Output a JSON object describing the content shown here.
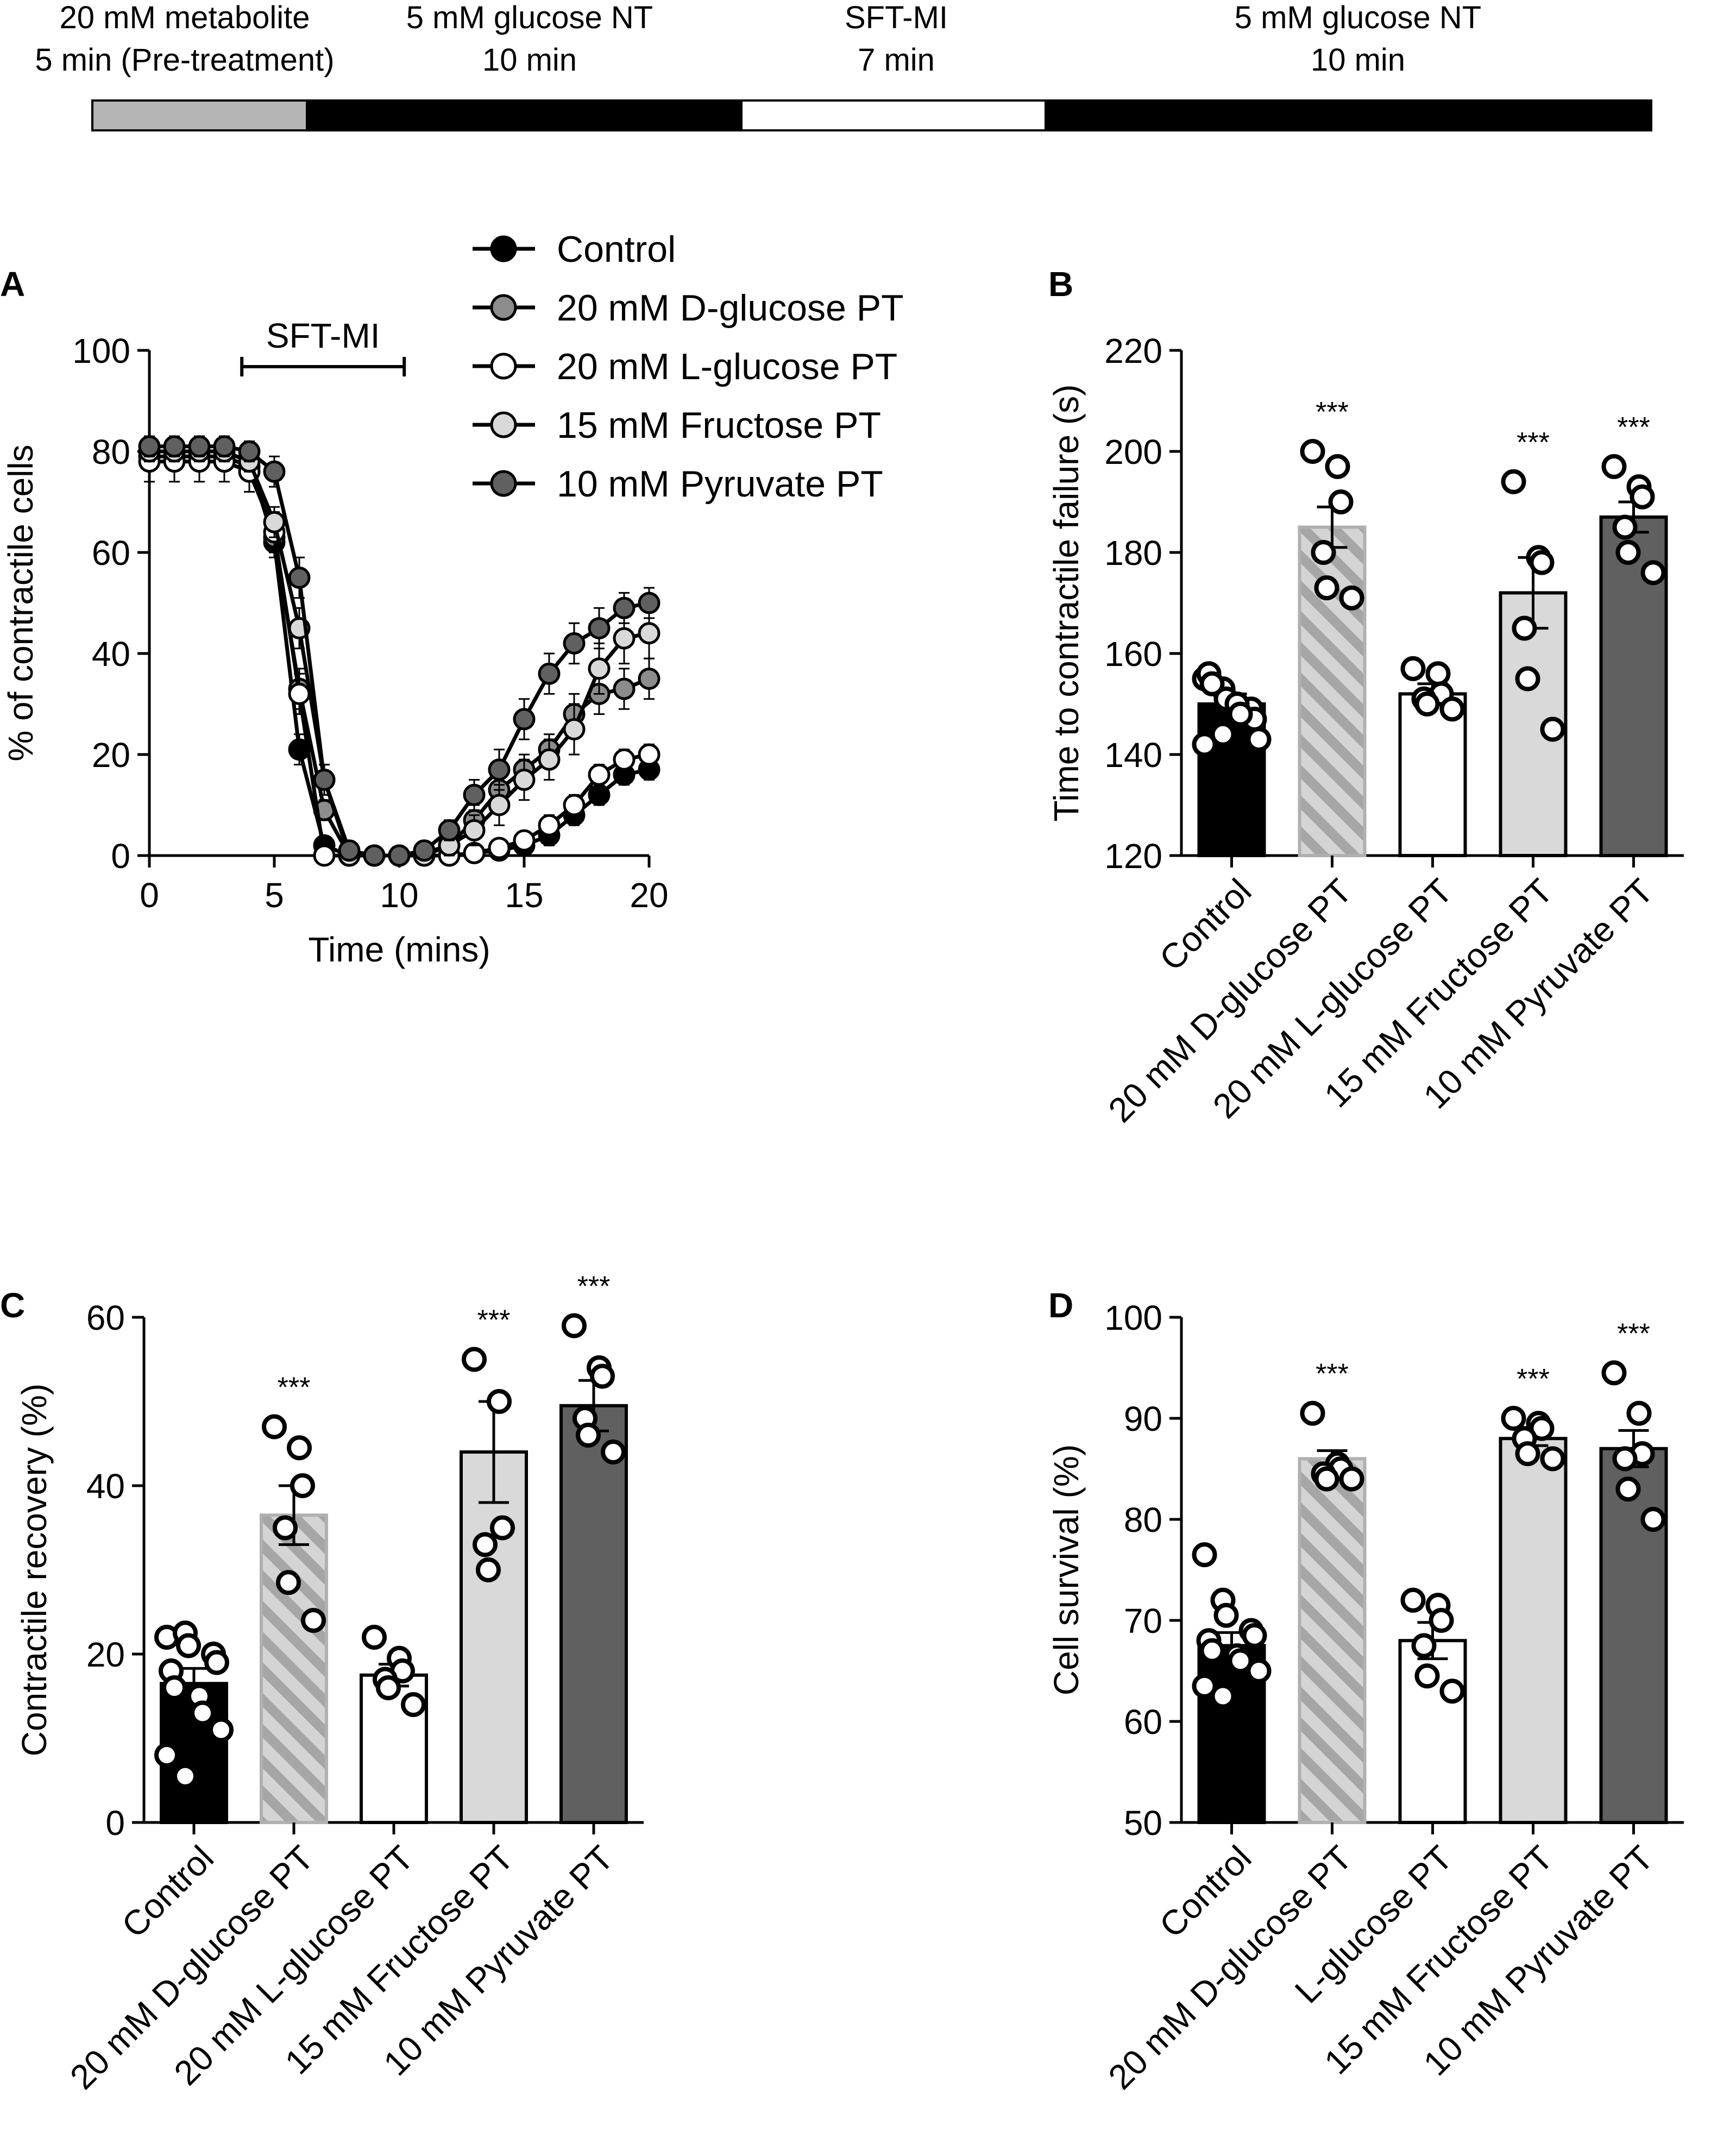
{
  "protocol": {
    "segments": [
      {
        "line1": "20 mM metabolite",
        "line2": "5 min (Pre-treatment)",
        "color": "#b5b5b5"
      },
      {
        "line1": "5 mM glucose NT",
        "line2": "10 min",
        "color": "#000000"
      },
      {
        "line1": "SFT-MI",
        "line2": "7 min",
        "color": "#ffffff"
      },
      {
        "line1": "5 mM glucose NT",
        "line2": "10 min",
        "color": "#000000"
      }
    ]
  },
  "chart_data": [
    {
      "panel": "A",
      "type": "line",
      "xlabel": "Time (mins)",
      "ylabel": "% of contractile cells",
      "xlim": [
        0,
        20
      ],
      "ylim": [
        0,
        100
      ],
      "xticks": [
        0,
        5,
        10,
        15,
        20
      ],
      "yticks": [
        0,
        20,
        40,
        60,
        80,
        100
      ],
      "annotation": {
        "label": "SFT-MI",
        "x_start": 3.7,
        "x_end": 10.2
      },
      "x": [
        0,
        1,
        2,
        3,
        4,
        5,
        6,
        7,
        8,
        9,
        10,
        11,
        12,
        13,
        14,
        15,
        16,
        17,
        18,
        19,
        20
      ],
      "series": [
        {
          "name": "Control",
          "color": "#000000",
          "values": [
            80,
            80,
            80,
            80,
            78,
            62,
            21,
            2,
            0,
            0,
            0,
            0,
            0,
            0.5,
            1,
            2,
            4,
            8,
            12,
            16,
            17
          ],
          "errors": [
            2,
            2,
            2,
            2,
            2,
            3,
            3,
            1,
            0,
            0,
            0,
            0,
            0,
            1,
            1,
            1,
            2,
            2,
            2,
            2,
            2
          ]
        },
        {
          "name": "20 mM D-glucose PT",
          "color": "#8c8c8c",
          "values": [
            79,
            79,
            79,
            79,
            77,
            63,
            33,
            9,
            0,
            0,
            0,
            0.5,
            2,
            7,
            13,
            17,
            21,
            28,
            32,
            33,
            35
          ],
          "errors": [
            2,
            2,
            2,
            2,
            2,
            3,
            4,
            2,
            0,
            0,
            0,
            1,
            2,
            3,
            3,
            3,
            3,
            4,
            4,
            4,
            4
          ]
        },
        {
          "name": "20 mM L-glucose PT",
          "color": "#ffffff",
          "values": [
            78,
            78,
            78,
            78,
            76,
            64,
            32,
            0,
            0,
            0,
            0,
            0,
            0,
            0.5,
            1.5,
            3,
            6,
            10,
            16,
            19,
            20
          ],
          "errors": [
            4,
            4,
            4,
            4,
            4,
            4,
            4,
            1,
            0,
            0,
            0,
            0,
            0,
            1,
            1,
            1,
            2,
            2,
            2,
            2,
            2
          ]
        },
        {
          "name": "15 mM Fructose PT",
          "color": "#d9d9d9",
          "values": [
            80,
            80,
            80,
            80,
            78,
            66,
            45,
            15,
            0,
            0,
            0,
            0,
            2,
            5,
            10,
            15,
            19,
            25,
            37,
            43,
            44
          ],
          "errors": [
            2,
            2,
            2,
            2,
            2,
            3,
            4,
            3,
            0,
            0,
            0,
            1,
            2,
            3,
            4,
            4,
            4,
            5,
            5,
            5,
            5
          ]
        },
        {
          "name": "10 mM Pyruvate PT",
          "color": "#606060",
          "values": [
            81,
            81,
            81,
            81,
            80,
            76,
            55,
            15,
            1,
            0,
            0,
            1,
            5,
            12,
            17,
            27,
            36,
            42,
            45,
            49,
            50
          ],
          "errors": [
            2,
            2,
            2,
            2,
            2,
            3,
            4,
            3,
            1,
            0,
            0,
            1,
            2,
            3,
            4,
            4,
            4,
            4,
            4,
            3,
            3
          ]
        }
      ]
    },
    {
      "panel": "B",
      "type": "bar",
      "ylabel": "Time to contractile failure (s)",
      "ylim": [
        120,
        220
      ],
      "yticks": [
        120,
        140,
        160,
        180,
        200,
        220
      ],
      "categories": [
        "Control",
        "20 mM D-glucose PT",
        "20 mM L-glucose PT",
        "15 mM Fructose PT",
        "10 mM Pyruvate PT"
      ],
      "values": [
        150,
        185,
        152,
        172,
        187
      ],
      "errors": [
        2,
        4,
        2,
        7,
        3
      ],
      "significance": [
        "",
        "***",
        "",
        "***",
        "***"
      ],
      "points": [
        [
          155,
          153,
          151,
          149,
          147,
          156,
          154,
          150,
          148,
          143,
          142,
          144
        ],
        [
          200,
          197,
          190,
          180,
          173,
          171
        ],
        [
          157,
          156,
          152,
          151,
          150,
          149
        ],
        [
          194,
          179,
          178,
          165,
          155,
          145
        ],
        [
          197,
          193,
          191,
          185,
          180,
          176
        ]
      ],
      "colors": [
        "#000000",
        "#b0b0b0",
        "#ffffff",
        "#d9d9d9",
        "#606060"
      ]
    },
    {
      "panel": "C",
      "type": "bar",
      "ylabel": "Contractile recovery (%)",
      "ylim": [
        0,
        60
      ],
      "yticks": [
        0,
        20,
        40,
        60
      ],
      "categories": [
        "Control",
        "20 mM D-glucose PT",
        "20 mM L-glucose PT",
        "15 mM Fructose PT",
        "10 mM Pyruvate PT"
      ],
      "values": [
        16.5,
        36.5,
        17.5,
        44,
        49.5
      ],
      "errors": [
        1.8,
        3.5,
        1.3,
        6,
        3
      ],
      "significance": [
        "",
        "***",
        "",
        "***",
        "***"
      ],
      "points": [
        [
          22,
          22.5,
          21,
          20,
          19,
          18,
          16,
          15,
          13,
          11,
          8,
          5.5
        ],
        [
          47,
          44.5,
          40,
          35,
          28.5,
          24
        ],
        [
          22,
          19.5,
          18,
          17,
          16,
          14
        ],
        [
          55,
          50,
          35,
          33,
          30
        ],
        [
          59,
          54,
          53,
          48,
          46,
          44
        ]
      ],
      "colors": [
        "#000000",
        "#b0b0b0",
        "#ffffff",
        "#d9d9d9",
        "#606060"
      ]
    },
    {
      "panel": "D",
      "type": "bar",
      "ylabel": "Cell survival (%)",
      "ylim": [
        50,
        100
      ],
      "yticks": [
        50,
        60,
        70,
        80,
        90,
        100
      ],
      "categories": [
        "Control",
        "20 mM D-glucose PT",
        "L-glucose PT",
        "15 mM Fructose PT",
        "10 mM Pyruvate PT"
      ],
      "values": [
        67.5,
        86,
        68,
        88,
        87
      ],
      "errors": [
        1.3,
        0.8,
        1.8,
        0.7,
        1.8
      ],
      "significance": [
        "",
        "***",
        "",
        "***",
        "***"
      ],
      "points": [
        [
          76.5,
          72,
          70.5,
          69,
          68.5,
          68,
          67,
          66.5,
          66,
          65,
          63.5,
          62.5
        ],
        [
          90.5,
          85.5,
          85,
          84.5,
          84,
          84
        ],
        [
          72,
          71.5,
          70,
          67.5,
          64.5,
          63
        ],
        [
          90,
          89.5,
          89,
          88,
          86.5,
          86
        ],
        [
          94.5,
          90.5,
          86.5,
          86,
          83,
          80
        ]
      ],
      "colors": [
        "#000000",
        "#b0b0b0",
        "#ffffff",
        "#d9d9d9",
        "#606060"
      ]
    }
  ]
}
